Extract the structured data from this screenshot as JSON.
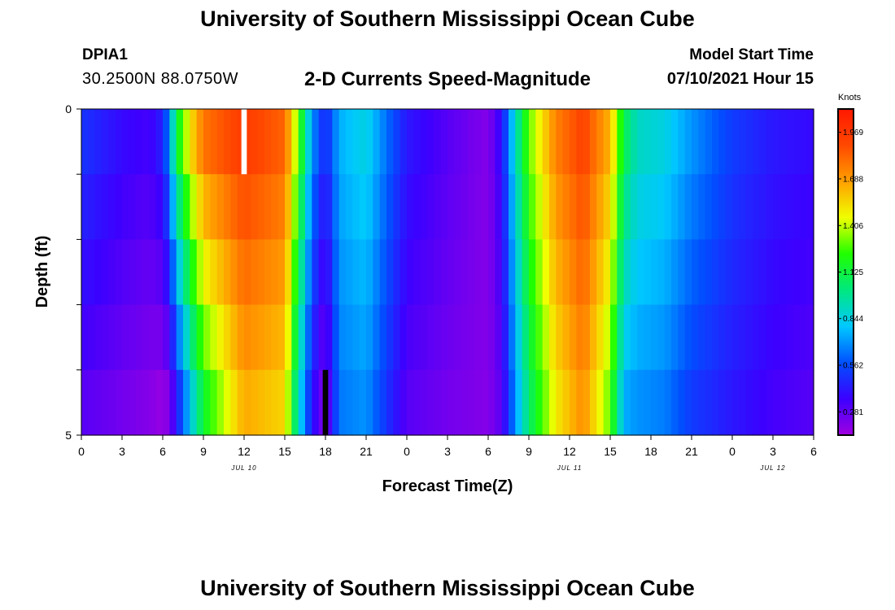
{
  "header": {
    "title": "University of Southern Mississippi Ocean Cube",
    "station_id": "DPIA1",
    "coordinates": "30.2500N  88.0750W",
    "chart_title": "2-D Currents Speed-Magnitude",
    "model_start_label": "Model Start Time",
    "model_start_value": "07/10/2021 Hour 15"
  },
  "footer": {
    "title": "University of Southern Mississippi Ocean Cube"
  },
  "colors": {
    "palette": [
      "#a000e0",
      "#3c00ff",
      "#0050ff",
      "#00c8ff",
      "#00e880",
      "#20ff00",
      "#f0ff00",
      "#ffa000",
      "#ff4800",
      "#ff1800"
    ],
    "missing_light": "#ffffff",
    "missing_dark": "#000000"
  },
  "chart_data": {
    "type": "heatmap",
    "title": "2-D Currents Speed-Magnitude",
    "xlabel": "Forecast Time(Z)",
    "ylabel": "Depth (ft)",
    "xlim": [
      0,
      54
    ],
    "ylim": [
      0,
      5
    ],
    "y_ticks": [
      0,
      1,
      2,
      3,
      4,
      5
    ],
    "y_tick_labels": [
      "0",
      "",
      "",
      "",
      "",
      "5"
    ],
    "x_ticks": [
      0,
      3,
      6,
      9,
      12,
      15,
      18,
      21,
      24,
      27,
      30,
      33,
      36,
      39,
      42,
      45,
      48,
      51,
      54
    ],
    "x_tick_labels": [
      "0",
      "3",
      "6",
      "9",
      "12",
      "15",
      "18",
      "21",
      "0",
      "3",
      "6",
      "9",
      "12",
      "15",
      "18",
      "21",
      "0",
      "3",
      "6"
    ],
    "date_labels": [
      {
        "x": 12,
        "text": "JUL 10"
      },
      {
        "x": 36,
        "text": "JUL 11"
      },
      {
        "x": 51,
        "text": "JUL 12"
      }
    ],
    "colorbar": {
      "label": "Knots",
      "min": 0.14,
      "max": 2.11,
      "ticks": [
        0.281,
        0.562,
        0.844,
        1.125,
        1.406,
        1.688,
        1.969
      ],
      "tick_labels": [
        "0.281",
        "0.562",
        "0.844",
        "1.125",
        "1.406",
        "1.688",
        "1.969"
      ]
    },
    "depth_bins": [
      0,
      1,
      2,
      3,
      4,
      5
    ],
    "missing_cells": [
      {
        "x0": 11.8,
        "x1": 12.2,
        "depth_bin": 0,
        "kind": "light"
      },
      {
        "x0": 17.8,
        "x1": 18.2,
        "depth_bin": 4,
        "kind": "dark"
      }
    ],
    "speed_profile_surface": {
      "hours": [
        0,
        3,
        5,
        6,
        6.5,
        7,
        8,
        9,
        12,
        15,
        16,
        17,
        18,
        19,
        21,
        24,
        27,
        30,
        31,
        32,
        33,
        35,
        37,
        39,
        40,
        41,
        43,
        45,
        48,
        51,
        54
      ],
      "knots": [
        0.5,
        0.38,
        0.34,
        0.45,
        0.7,
        1.1,
        1.5,
        1.78,
        1.95,
        1.82,
        1.3,
        0.7,
        0.45,
        0.75,
        0.85,
        0.42,
        0.3,
        0.2,
        0.4,
        0.9,
        1.3,
        1.75,
        1.92,
        1.62,
        1.1,
        0.9,
        0.85,
        0.7,
        0.52,
        0.42,
        0.38
      ]
    },
    "speed_profile_bottom": {
      "hours": [
        0,
        3,
        5,
        6,
        6.5,
        7,
        8,
        9,
        12,
        15,
        16,
        17,
        18,
        19,
        21,
        24,
        27,
        30,
        31,
        32,
        33,
        35,
        37,
        39,
        40,
        41,
        43,
        45,
        48,
        51,
        54
      ],
      "knots": [
        0.3,
        0.24,
        0.2,
        0.16,
        0.22,
        0.42,
        0.8,
        1.15,
        1.65,
        1.55,
        0.9,
        0.42,
        0.2,
        0.65,
        0.7,
        0.3,
        0.24,
        0.2,
        0.3,
        0.7,
        1.05,
        1.5,
        1.72,
        1.3,
        0.75,
        0.7,
        0.66,
        0.52,
        0.42,
        0.34,
        0.3
      ]
    }
  }
}
